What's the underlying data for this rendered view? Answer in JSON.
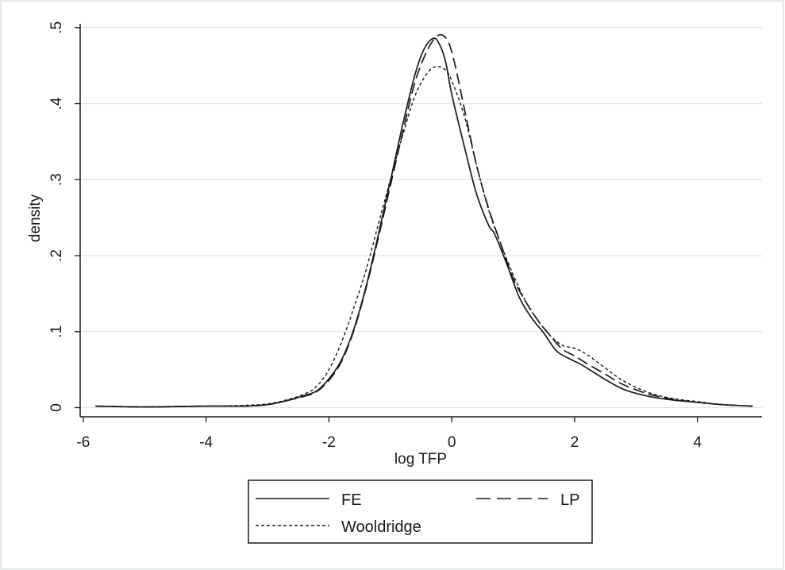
{
  "chart_data": {
    "type": "line",
    "title": "",
    "xlabel": "log TFP",
    "ylabel": "density",
    "xlim": [
      -6.05,
      5.05
    ],
    "ylim": [
      -0.012,
      0.505
    ],
    "x_ticks": [
      -6,
      -4,
      -2,
      0,
      2,
      4
    ],
    "x_tick_labels": [
      "-6",
      "-4",
      "-2",
      "0",
      "2",
      "4"
    ],
    "y_ticks": [
      0,
      0.1,
      0.2,
      0.3,
      0.4,
      0.5
    ],
    "y_tick_labels": [
      "0",
      ".1",
      ".2",
      ".3",
      ".4",
      ".5"
    ],
    "grid": true,
    "legend_position": "bottom",
    "colors": {
      "line": "#1a1a1a",
      "grid": "#dde6e6",
      "frame": "#cfd9d9"
    },
    "series": [
      {
        "name": "FE",
        "style": "solid",
        "x": [
          -5.8,
          -5.0,
          -4.0,
          -3.4,
          -3.0,
          -2.7,
          -2.4,
          -2.2,
          -2.0,
          -1.8,
          -1.6,
          -1.4,
          -1.2,
          -1.0,
          -0.8,
          -0.6,
          -0.45,
          -0.3,
          -0.2,
          -0.1,
          0.0,
          0.2,
          0.4,
          0.6,
          0.7,
          0.9,
          1.1,
          1.3,
          1.5,
          1.7,
          1.9,
          2.1,
          2.3,
          2.5,
          2.8,
          3.2,
          3.6,
          4.0,
          4.4,
          4.9
        ],
        "y": [
          0.002,
          0.001,
          0.002,
          0.002,
          0.004,
          0.009,
          0.016,
          0.022,
          0.038,
          0.062,
          0.102,
          0.158,
          0.226,
          0.298,
          0.372,
          0.438,
          0.472,
          0.486,
          0.478,
          0.455,
          0.412,
          0.345,
          0.282,
          0.24,
          0.228,
          0.188,
          0.145,
          0.118,
          0.098,
          0.075,
          0.065,
          0.057,
          0.047,
          0.037,
          0.024,
          0.015,
          0.01,
          0.007,
          0.004,
          0.002
        ]
      },
      {
        "name": "LP",
        "style": "dashed",
        "x": [
          -5.8,
          -5.0,
          -4.0,
          -3.4,
          -3.0,
          -2.7,
          -2.4,
          -2.2,
          -2.0,
          -1.8,
          -1.6,
          -1.4,
          -1.2,
          -1.0,
          -0.8,
          -0.6,
          -0.4,
          -0.25,
          -0.15,
          -0.05,
          0.05,
          0.2,
          0.4,
          0.6,
          0.8,
          1.0,
          1.2,
          1.4,
          1.6,
          1.8,
          2.0,
          2.2,
          2.5,
          2.8,
          3.2,
          3.6,
          4.0,
          4.4,
          4.9
        ],
        "y": [
          0.002,
          0.001,
          0.002,
          0.002,
          0.004,
          0.009,
          0.015,
          0.021,
          0.036,
          0.06,
          0.1,
          0.156,
          0.222,
          0.292,
          0.362,
          0.428,
          0.47,
          0.488,
          0.49,
          0.48,
          0.452,
          0.395,
          0.32,
          0.262,
          0.215,
          0.17,
          0.14,
          0.115,
          0.095,
          0.077,
          0.068,
          0.058,
          0.044,
          0.03,
          0.018,
          0.011,
          0.007,
          0.004,
          0.002
        ]
      },
      {
        "name": "Wooldridge",
        "style": "dotted",
        "x": [
          -5.8,
          -5.0,
          -4.0,
          -3.4,
          -3.0,
          -2.7,
          -2.4,
          -2.2,
          -2.0,
          -1.8,
          -1.6,
          -1.4,
          -1.2,
          -1.0,
          -0.8,
          -0.6,
          -0.4,
          -0.25,
          -0.1,
          0.0,
          0.2,
          0.4,
          0.6,
          0.8,
          1.0,
          1.2,
          1.4,
          1.6,
          1.8,
          2.0,
          2.2,
          2.5,
          2.8,
          3.2,
          3.6,
          4.0,
          4.4,
          4.9
        ],
        "y": [
          0.002,
          0.001,
          0.002,
          0.003,
          0.005,
          0.01,
          0.018,
          0.028,
          0.05,
          0.085,
          0.13,
          0.18,
          0.24,
          0.3,
          0.358,
          0.41,
          0.44,
          0.449,
          0.444,
          0.43,
          0.385,
          0.32,
          0.26,
          0.215,
          0.175,
          0.14,
          0.115,
          0.095,
          0.082,
          0.078,
          0.07,
          0.052,
          0.035,
          0.02,
          0.012,
          0.008,
          0.004,
          0.002
        ]
      }
    ]
  }
}
